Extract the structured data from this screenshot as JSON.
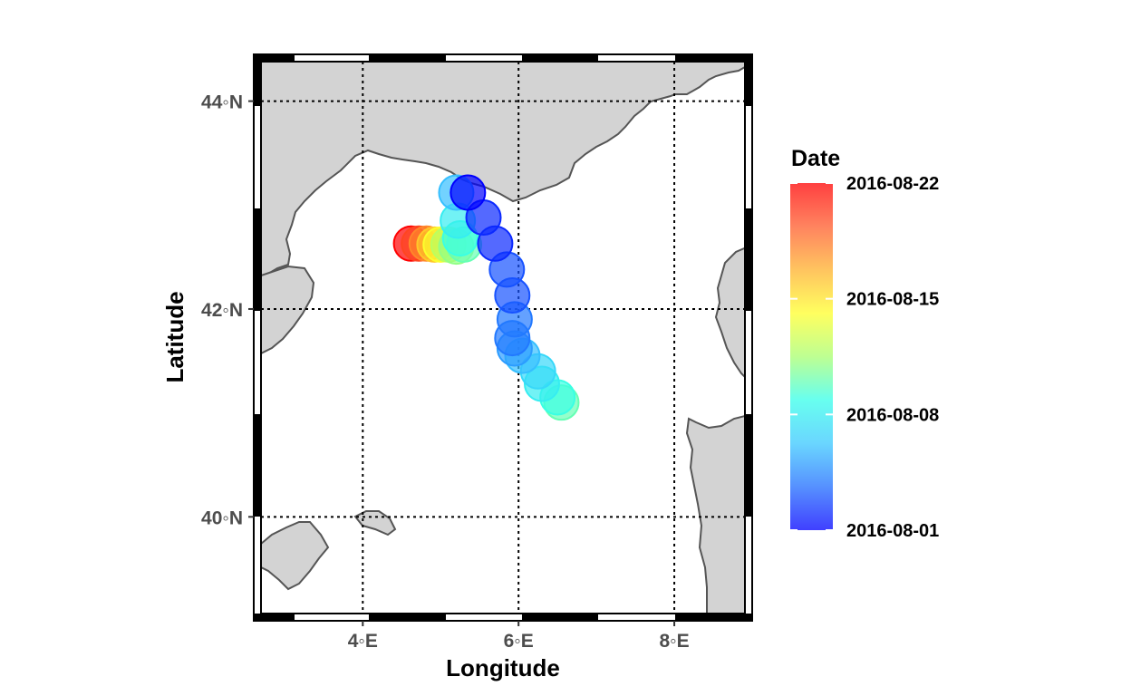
{
  "map": {
    "lon_range": [
      2.6,
      9.0
    ],
    "lat_range": [
      39.0,
      44.45
    ],
    "x_label": "Longitude",
    "y_label": "Latitude",
    "x_ticks": [
      {
        "value": 4,
        "label": "4◦E"
      },
      {
        "value": 6,
        "label": "6◦E"
      },
      {
        "value": 8,
        "label": "8◦E"
      }
    ],
    "y_ticks": [
      {
        "value": 40,
        "label": "40◦N"
      },
      {
        "value": 42,
        "label": "42◦N"
      },
      {
        "value": 44,
        "label": "44◦N"
      }
    ],
    "graticule": "dotted",
    "frame": "black-white alternating border",
    "land_color": "#d3d3d3",
    "coast_color": "#555555",
    "sea_color": "#ffffff"
  },
  "legend": {
    "title": "Date",
    "position": "right",
    "date_range": [
      "2016-08-01",
      "2016-08-22"
    ],
    "ticks": [
      "2016-08-22",
      "2016-08-15",
      "2016-08-08",
      "2016-08-01"
    ],
    "colormap": [
      "#0000ff",
      "#1e6cff",
      "#38c8ff",
      "#35ffea",
      "#a8ff6e",
      "#ffff2a",
      "#ffb02a",
      "#ff5a2a",
      "#ff0000"
    ]
  },
  "chart_data": {
    "type": "scatter",
    "x_label": "Longitude",
    "y_label": "Latitude",
    "xlim": [
      2.6,
      9.0
    ],
    "ylim": [
      39.0,
      44.45
    ],
    "points": [
      {
        "lon": 5.35,
        "lat": 43.12,
        "date": "2016-08-01"
      },
      {
        "lon": 5.55,
        "lat": 42.88,
        "date": "2016-08-02"
      },
      {
        "lon": 5.7,
        "lat": 42.63,
        "date": "2016-08-02"
      },
      {
        "lon": 5.85,
        "lat": 42.38,
        "date": "2016-08-03"
      },
      {
        "lon": 5.92,
        "lat": 42.13,
        "date": "2016-08-03"
      },
      {
        "lon": 5.95,
        "lat": 41.9,
        "date": "2016-08-04"
      },
      {
        "lon": 5.92,
        "lat": 41.72,
        "date": "2016-08-04"
      },
      {
        "lon": 5.95,
        "lat": 41.62,
        "date": "2016-08-05"
      },
      {
        "lon": 6.05,
        "lat": 41.55,
        "date": "2016-08-06"
      },
      {
        "lon": 6.25,
        "lat": 41.4,
        "date": "2016-08-07"
      },
      {
        "lon": 6.3,
        "lat": 41.28,
        "date": "2016-08-08"
      },
      {
        "lon": 6.5,
        "lat": 41.15,
        "date": "2016-08-09"
      },
      {
        "lon": 6.55,
        "lat": 41.1,
        "date": "2016-08-10"
      },
      {
        "lon": 5.2,
        "lat": 43.12,
        "date": "2016-08-06"
      },
      {
        "lon": 5.22,
        "lat": 42.85,
        "date": "2016-08-08"
      },
      {
        "lon": 5.25,
        "lat": 42.68,
        "date": "2016-08-09"
      },
      {
        "lon": 5.3,
        "lat": 42.62,
        "date": "2016-08-10"
      },
      {
        "lon": 5.2,
        "lat": 42.6,
        "date": "2016-08-11"
      },
      {
        "lon": 5.1,
        "lat": 42.62,
        "date": "2016-08-12"
      },
      {
        "lon": 5.0,
        "lat": 42.62,
        "date": "2016-08-14"
      },
      {
        "lon": 4.92,
        "lat": 42.62,
        "date": "2016-08-16"
      },
      {
        "lon": 4.82,
        "lat": 42.63,
        "date": "2016-08-18"
      },
      {
        "lon": 4.72,
        "lat": 42.63,
        "date": "2016-08-20"
      },
      {
        "lon": 4.62,
        "lat": 42.63,
        "date": "2016-08-22"
      }
    ]
  }
}
